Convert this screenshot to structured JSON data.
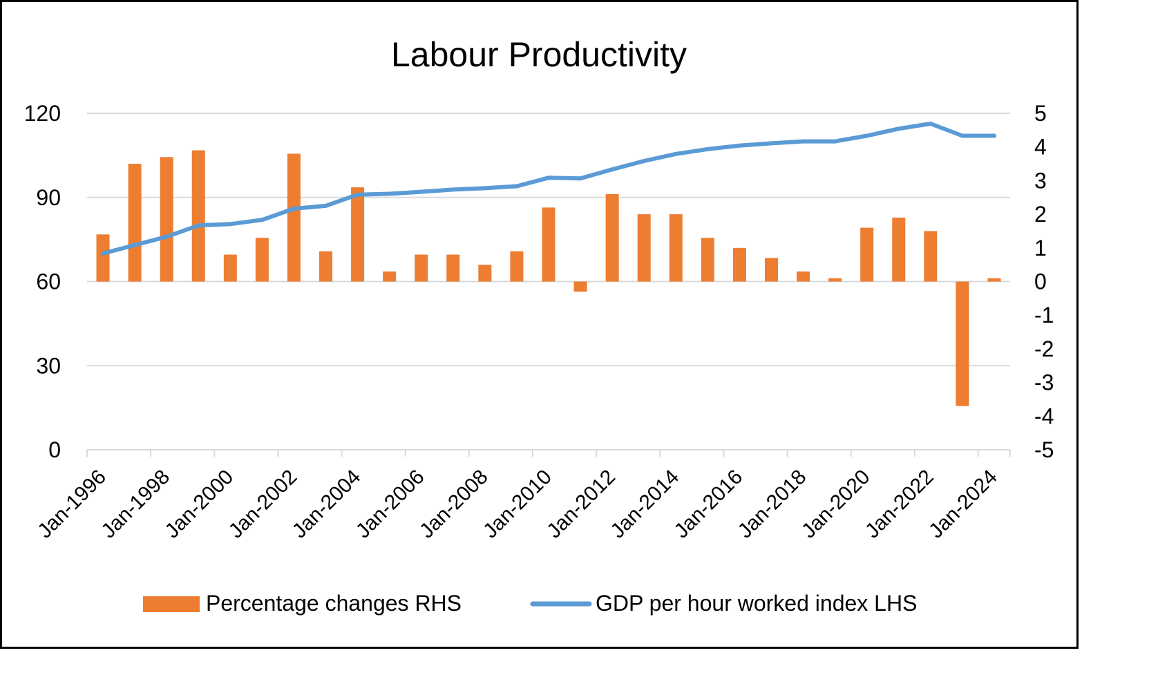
{
  "chart_data": {
    "type": "bar+line",
    "title": "Labour Productivity",
    "categories": [
      "1996",
      "1997",
      "1998",
      "1999",
      "2000",
      "2001",
      "2002",
      "2003",
      "2004",
      "2005",
      "2006",
      "2007",
      "2008",
      "2009",
      "2010",
      "2011",
      "2012",
      "2013",
      "2014",
      "2015",
      "2016",
      "2017",
      "2018",
      "2019",
      "2020",
      "2021",
      "2022",
      "2023",
      "2024"
    ],
    "x_tick_labels": [
      "Jan-1996",
      "Jan-1998",
      "Jan-2000",
      "Jan-2002",
      "Jan-2004",
      "Jan-2006",
      "Jan-2008",
      "Jan-2010",
      "Jan-2012",
      "Jan-2014",
      "Jan-2016",
      "Jan-2018",
      "Jan-2020",
      "Jan-2022",
      "Jan-2024"
    ],
    "left_axis": {
      "ylim": [
        0,
        120
      ],
      "ticks": [
        "0",
        "30",
        "60",
        "90",
        "120"
      ]
    },
    "right_axis": {
      "ylim": [
        -5,
        5
      ],
      "ticks": [
        "-5",
        "-4",
        "-3",
        "-2",
        "-1",
        "0",
        "1",
        "2",
        "3",
        "4",
        "5"
      ]
    },
    "series": [
      {
        "name": "Percentage changes RHS",
        "type": "bar",
        "axis": "right",
        "color": "#ED7D31",
        "values": [
          1.4,
          3.5,
          3.7,
          3.9,
          0.8,
          1.3,
          3.8,
          0.9,
          2.8,
          0.3,
          0.8,
          0.8,
          0.5,
          0.9,
          2.2,
          -0.3,
          2.6,
          2.0,
          2.0,
          1.3,
          1.0,
          0.7,
          0.3,
          0.1,
          1.6,
          1.9,
          1.5,
          -3.7,
          0.1
        ]
      },
      {
        "name": "GDP per hour worked index LHS",
        "type": "line",
        "axis": "left",
        "color": "#5B9BD5",
        "values": [
          70,
          73,
          76,
          80,
          80.5,
          82,
          86,
          87,
          91,
          91.3,
          92,
          92.8,
          93.3,
          94,
          97,
          96.8,
          100,
          103,
          105.5,
          107.2,
          108.5,
          109.3,
          110,
          110,
          112,
          114.5,
          116.3,
          112,
          112
        ]
      }
    ],
    "legend_position": "bottom",
    "grid": true
  }
}
